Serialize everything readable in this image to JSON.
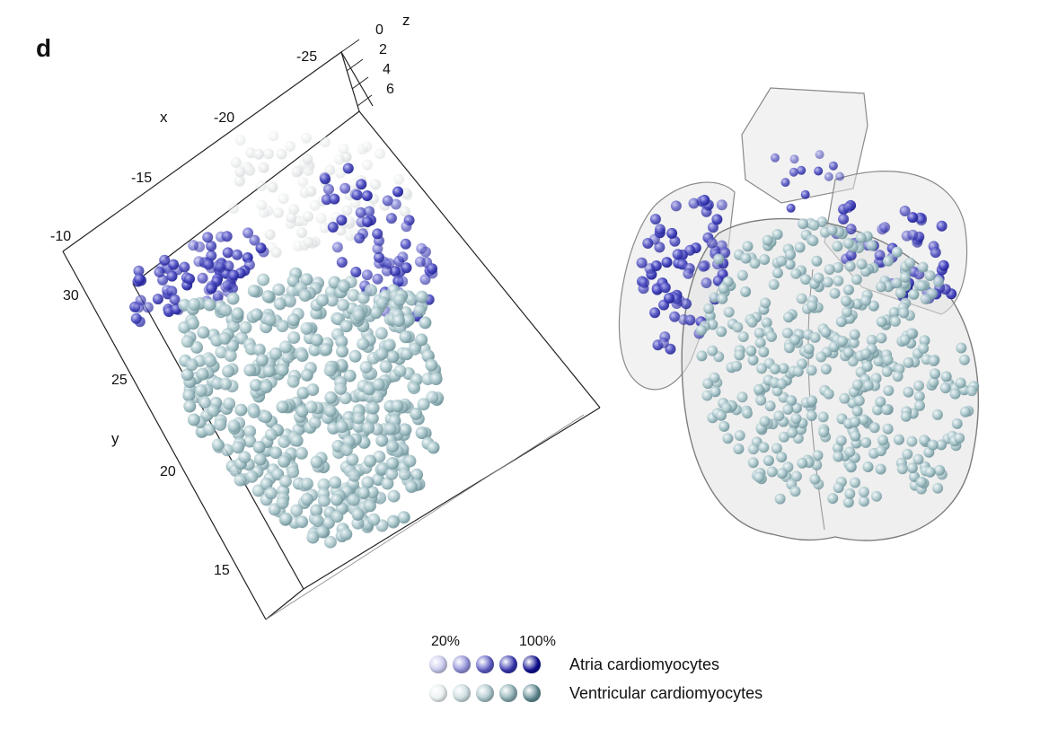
{
  "panel": {
    "label": "d"
  },
  "axes": {
    "x": {
      "name": "x",
      "ticks": [
        "-25",
        "-20",
        "-15",
        "-10"
      ]
    },
    "y": {
      "name": "y",
      "ticks": [
        "30",
        "25",
        "20",
        "15"
      ]
    },
    "z": {
      "name": "z",
      "ticks": [
        "0",
        "2",
        "4",
        "6"
      ]
    }
  },
  "legend": {
    "min_label": "20%",
    "max_label": "100%",
    "rows": [
      {
        "name": "Atria cardiomyocytes",
        "colors": [
          "#c9c9ee",
          "#8f8fd8",
          "#5c5cc4",
          "#3434ad",
          "#0d0d8f"
        ]
      },
      {
        "name": "Ventricular cardiomyocytes",
        "colors": [
          "#e9f0f1",
          "#cbdcdf",
          "#a8c4c9",
          "#87aab0",
          "#5f8a91"
        ]
      }
    ]
  },
  "colors": {
    "atria": "#3a3ab8",
    "ventricular": "#a9c6cb",
    "heart_outline": "#8a8a8a"
  }
}
